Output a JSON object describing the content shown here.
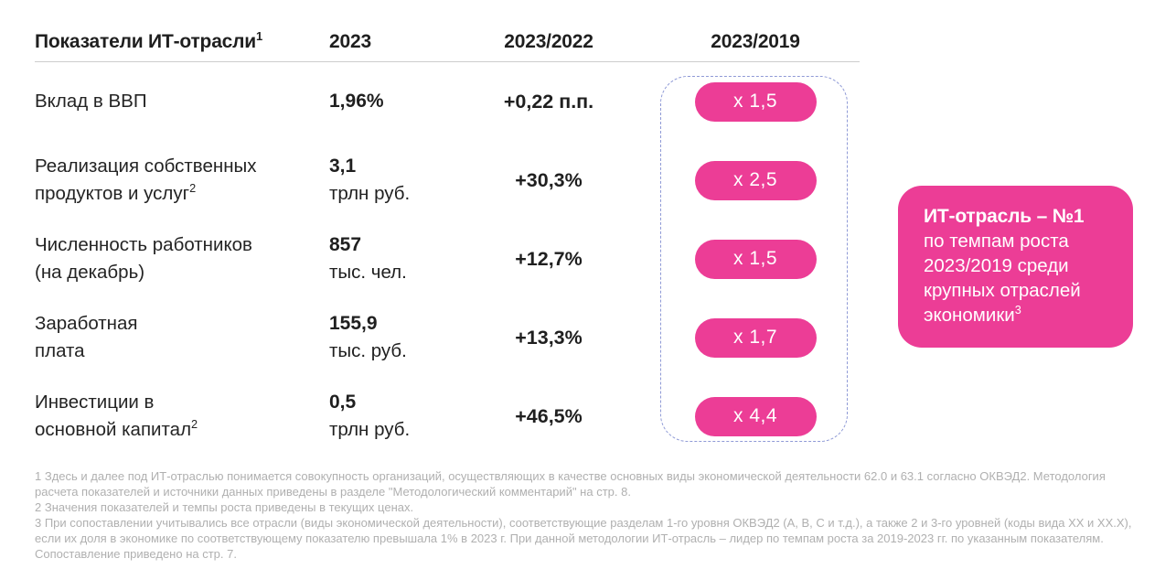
{
  "chart_data": {
    "type": "table",
    "header": {
      "title": "Показатели ИТ-отрасли",
      "title_sup": "1",
      "col_2023": "2023",
      "col_2023_2022": "2023/2022",
      "col_2023_2019": "2023/2019"
    },
    "rows": [
      {
        "label_line1": "Вклад в ВВП",
        "label_line2": "",
        "label_sup": "",
        "value": "1,96%",
        "unit": "",
        "delta": "+0,22 п.п.",
        "multiplier": "х 1,5"
      },
      {
        "label_line1": "Реализация собственных",
        "label_line2": "продуктов и услуг",
        "label_sup": "2",
        "value": "3,1",
        "unit": "трлн руб.",
        "delta": "+30,3%",
        "multiplier": "х 2,5"
      },
      {
        "label_line1": "Численность работников",
        "label_line2": "(на декабрь)",
        "label_sup": "",
        "value": "857",
        "unit": "тыс. чел.",
        "delta": "+12,7%",
        "multiplier": "х 1,5"
      },
      {
        "label_line1": "Заработная",
        "label_line2": "плата",
        "label_sup": "",
        "value": "155,9",
        "unit": "тыс. руб.",
        "delta": "+13,3%",
        "multiplier": "х 1,7"
      },
      {
        "label_line1": "Инвестиции в",
        "label_line2": "основной капитал",
        "label_sup": "2",
        "value": "0,5",
        "unit": "трлн руб.",
        "delta": "+46,5%",
        "multiplier": "х 4,4"
      }
    ]
  },
  "highlight_box": {
    "title": "ИТ-отрасль – №1",
    "body": "по темпам роста 2023/2019 среди крупных отраслей экономики",
    "body_sup": "3"
  },
  "footnotes": [
    "1 Здесь и далее под ИТ-отраслью понимается совокупность организаций, осуществляющих в качестве основных виды экономической деятельности 62.0 и 63.1 согласно ОКВЭД2. Методология расчета показателей и источники данных приведены в разделе \"Методологический комментарий\" на стр. 8.",
    "2 Значения показателей и темпы роста приведены в текущих ценах.",
    "3 При сопоставлении учитывались все отрасли (виды экономической деятельности), соответствующие разделам 1-го уровня ОКВЭД2 (A, B, C и т.д.), а также 2 и 3-го уровней (коды вида XX и XX.X), если их доля в экономике по соответствующему показателю превышала 1% в 2023 г. При данной методологии ИТ-отрасль – лидер по темпам роста за 2019-2023 гг. по указанным показателям. Сопоставление приведено на стр. 7."
  ],
  "colors": {
    "accent_pink": "#ec3d96",
    "dashed_border": "#8f9ad6",
    "rule_gray": "#cdcdcd",
    "footnote_gray": "#b0b0b0"
  }
}
